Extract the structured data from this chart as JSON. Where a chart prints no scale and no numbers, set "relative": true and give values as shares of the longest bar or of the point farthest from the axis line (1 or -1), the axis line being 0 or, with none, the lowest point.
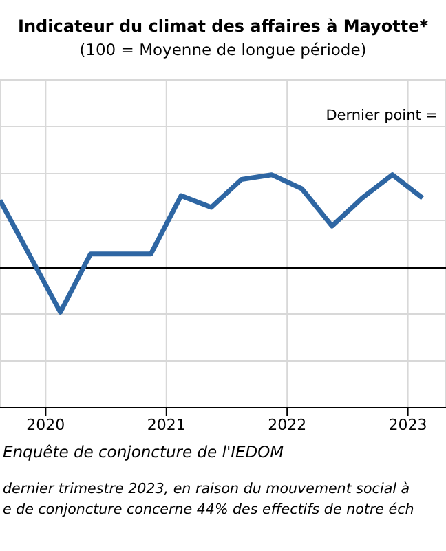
{
  "chart_data": {
    "type": "line",
    "title": "Indicateur du climat des affaires à Mayotte*",
    "subtitle": "(100 = Moyenne de longue période)",
    "relative": true,
    "x": [
      "2019-08-15",
      "2020-02-15",
      "2020-05-15",
      "2020-08-15",
      "2020-11-15",
      "2021-02-15",
      "2021-05-15",
      "2021-08-15",
      "2021-11-15",
      "2022-02-15",
      "2022-05-15",
      "2022-08-15",
      "2022-11-15",
      "2023-02-15"
    ],
    "series": [
      {
        "color": "#2e66a3",
        "values": [
          0.89,
          0.41,
          0.66,
          0.66,
          0.66,
          0.91,
          0.86,
          0.98,
          1.0,
          0.94,
          0.78,
          0.9,
          1.0,
          0.9
        ]
      }
    ],
    "xlim": [
      "2019-08-15",
      "2023-04-25"
    ],
    "xticks": [
      "2020",
      "2021",
      "2022",
      "2023"
    ],
    "ref_lines": [
      {
        "axis": "y",
        "value": 0.6,
        "color": "#000000"
      }
    ],
    "annotations": [
      "Dernier point = ",
      "Enquête de conjoncture de l'IEDOM",
      "dernier trimestre 2023, en raison du mouvement social à",
      "e de conjoncture concerne 44% des effectifs de notre éch"
    ],
    "grid": true,
    "marker": "none",
    "line_style": "solid"
  }
}
